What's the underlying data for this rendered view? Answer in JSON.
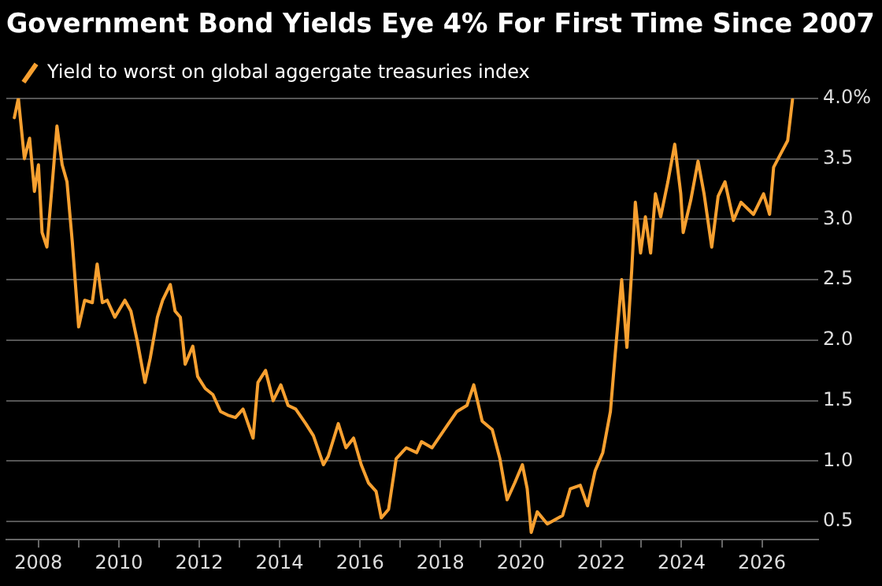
{
  "chart_data": {
    "type": "line",
    "title": "Government Bond Yields Eye 4% For First Time Since 2007",
    "x": [
      2007.4,
      2007.5,
      2007.65,
      2007.78,
      2007.9,
      2008.0,
      2008.09,
      2008.21,
      2008.34,
      2008.46,
      2008.59,
      2008.71,
      2008.84,
      2009.0,
      2009.15,
      2009.34,
      2009.46,
      2009.59,
      2009.71,
      2009.9,
      2010.15,
      2010.3,
      2010.46,
      2010.65,
      2010.78,
      2010.96,
      2011.09,
      2011.28,
      2011.4,
      2011.53,
      2011.65,
      2011.84,
      2011.96,
      2012.15,
      2012.34,
      2012.53,
      2012.71,
      2012.9,
      2013.09,
      2013.34,
      2013.46,
      2013.65,
      2013.84,
      2014.03,
      2014.21,
      2014.4,
      2014.65,
      2014.84,
      2015.09,
      2015.21,
      2015.46,
      2015.65,
      2015.84,
      2016.03,
      2016.21,
      2016.4,
      2016.53,
      2016.71,
      2016.9,
      2017.15,
      2017.41,
      2017.53,
      2017.79,
      2018.16,
      2018.41,
      2018.66,
      2018.83,
      2019.04,
      2019.29,
      2019.48,
      2019.66,
      2019.85,
      2020.04,
      2020.16,
      2020.26,
      2020.41,
      2020.66,
      2021.04,
      2021.23,
      2021.48,
      2021.66,
      2021.85,
      2022.04,
      2022.23,
      2022.35,
      2022.51,
      2022.64,
      2022.76,
      2022.85,
      2022.98,
      2023.1,
      2023.23,
      2023.35,
      2023.48,
      2023.66,
      2023.83,
      2023.98,
      2024.04,
      2024.23,
      2024.41,
      2024.56,
      2024.75,
      2024.91,
      2025.08,
      2025.29,
      2025.48,
      2025.79,
      2026.04,
      2026.19,
      2026.29,
      2026.48,
      2026.64,
      2026.76
    ],
    "series": [
      {
        "name": "Yield to worst on global aggergate treasuries index",
        "color": "#f7a030",
        "values": [
          3.84,
          4.0,
          3.5,
          3.67,
          3.23,
          3.45,
          2.89,
          2.77,
          3.28,
          3.77,
          3.45,
          3.31,
          2.82,
          2.11,
          2.33,
          2.31,
          2.63,
          2.31,
          2.33,
          2.19,
          2.33,
          2.24,
          1.99,
          1.65,
          1.85,
          2.19,
          2.33,
          2.46,
          2.24,
          2.19,
          1.8,
          1.95,
          1.7,
          1.6,
          1.55,
          1.41,
          1.38,
          1.36,
          1.43,
          1.19,
          1.65,
          1.75,
          1.5,
          1.63,
          1.46,
          1.43,
          1.31,
          1.21,
          0.97,
          1.04,
          1.31,
          1.11,
          1.19,
          0.97,
          0.82,
          0.75,
          0.53,
          0.6,
          1.02,
          1.11,
          1.07,
          1.16,
          1.11,
          1.29,
          1.41,
          1.46,
          1.63,
          1.33,
          1.26,
          1.02,
          0.68,
          0.82,
          0.97,
          0.77,
          0.41,
          0.58,
          0.48,
          0.55,
          0.77,
          0.8,
          0.63,
          0.92,
          1.07,
          1.41,
          1.89,
          2.5,
          1.94,
          2.58,
          3.14,
          2.72,
          3.02,
          2.72,
          3.21,
          3.02,
          3.31,
          3.62,
          3.21,
          2.89,
          3.16,
          3.48,
          3.21,
          2.77,
          3.19,
          3.31,
          2.99,
          3.14,
          3.04,
          3.21,
          3.04,
          3.43,
          3.55,
          3.65,
          3.99
        ]
      }
    ],
    "xlim": [
      2007.2,
      2027.4
    ],
    "xticks": [
      2008,
      {
        "value": 2009,
        "label": null
      },
      2010,
      {
        "value": 2011,
        "label": null
      },
      2012,
      {
        "value": 2013,
        "label": null
      },
      2014,
      {
        "value": 2015,
        "label": null
      },
      2016,
      {
        "value": 2017,
        "label": null
      },
      2018,
      {
        "value": 2019,
        "label": null
      },
      2020,
      {
        "value": 2021,
        "label": null
      },
      2022,
      {
        "value": 2023,
        "label": null
      },
      2024,
      {
        "value": 2025,
        "label": null
      },
      2026
    ],
    "ylim": [
      0.35,
      4.0
    ],
    "yticks": [
      {
        "value": 0.5,
        "label": "0.5"
      },
      {
        "value": 1,
        "label": "1.0"
      },
      {
        "value": 1.5,
        "label": "1.5"
      },
      {
        "value": 2,
        "label": "2.0"
      },
      {
        "value": 2.5,
        "label": "2.5"
      },
      {
        "value": 3,
        "label": "3.0"
      },
      {
        "value": 3.5,
        "label": "3.5"
      },
      {
        "value": 4,
        "label": "4.0%"
      }
    ],
    "grid": "y",
    "legend": "top left",
    "marker": "none",
    "line_style": "solid"
  }
}
